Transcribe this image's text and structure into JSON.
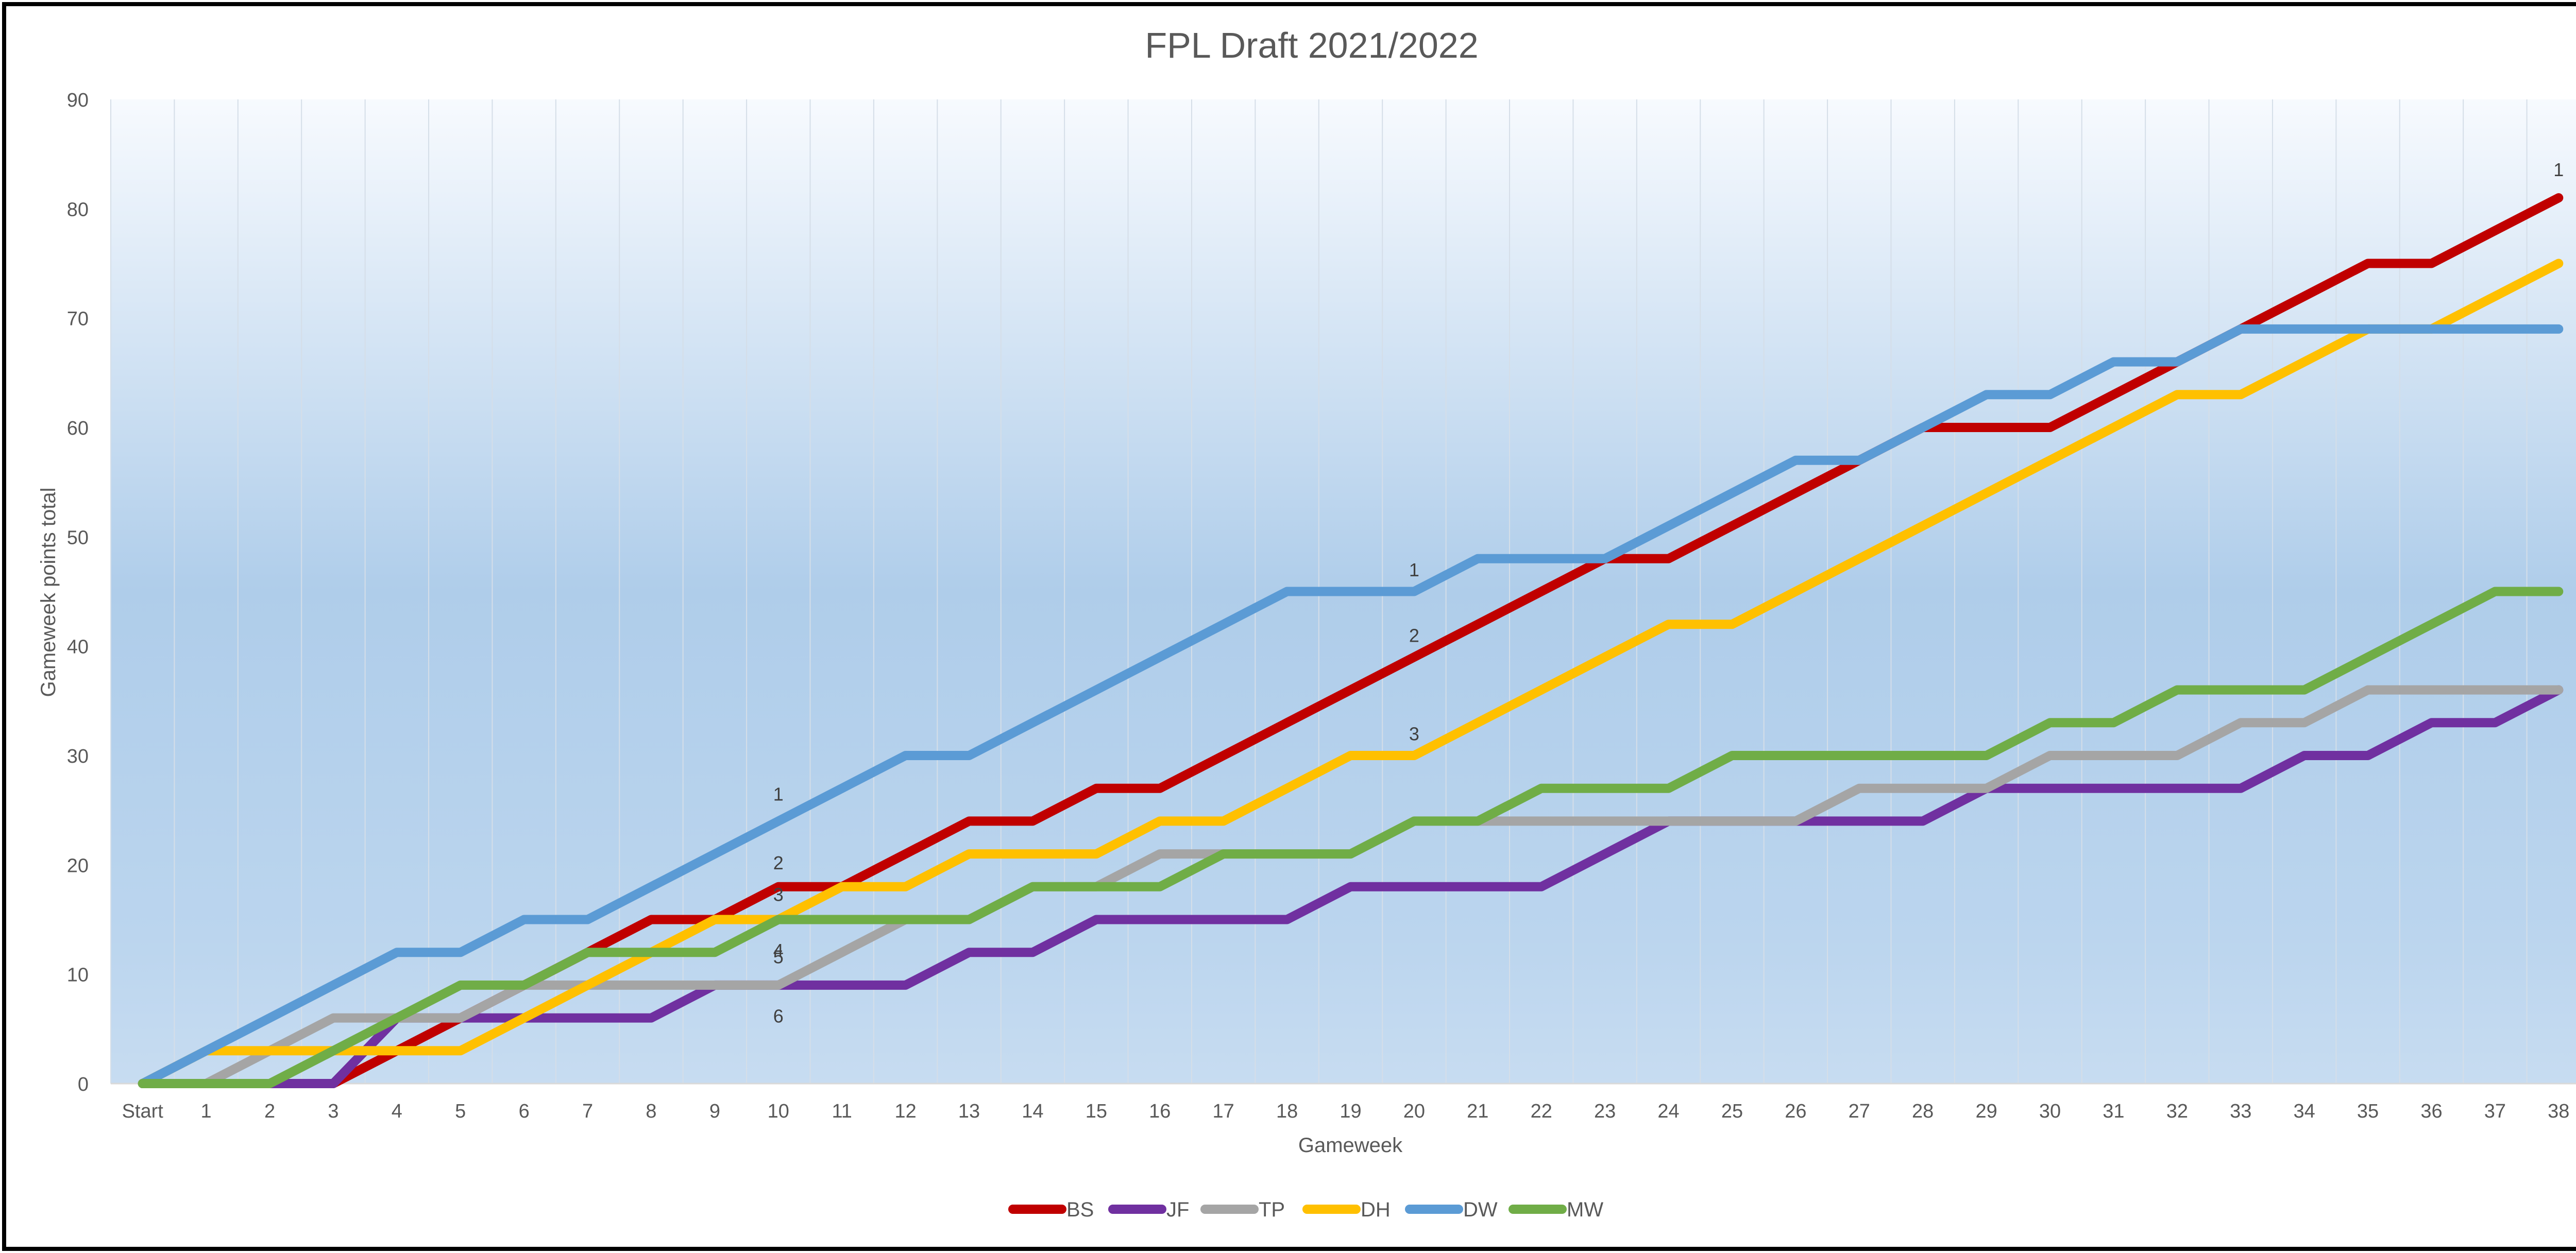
{
  "chart_data": {
    "type": "line",
    "title": "FPL Draft 2021/2022",
    "xlabel": "Gameweek",
    "ylabel": "Gameweek points total",
    "ylim": [
      0,
      90
    ],
    "y_ticks": [
      0,
      10,
      20,
      30,
      40,
      50,
      60,
      70,
      80,
      90
    ],
    "categories": [
      "Start",
      "1",
      "2",
      "3",
      "4",
      "5",
      "6",
      "7",
      "8",
      "9",
      "10",
      "11",
      "12",
      "13",
      "14",
      "15",
      "16",
      "17",
      "18",
      "19",
      "20",
      "21",
      "22",
      "23",
      "24",
      "25",
      "26",
      "27",
      "28",
      "29",
      "30",
      "31",
      "32",
      "33",
      "34",
      "35",
      "36",
      "37",
      "38"
    ],
    "grid": "vertical",
    "legend": "bottom",
    "series": [
      {
        "name": "BS",
        "color": "#C00000",
        "values": [
          0,
          0,
          0,
          0,
          3,
          6,
          9,
          12,
          15,
          15,
          18,
          18,
          21,
          24,
          24,
          27,
          27,
          30,
          33,
          36,
          39,
          42,
          45,
          48,
          48,
          51,
          54,
          57,
          60,
          60,
          60,
          63,
          66,
          69,
          72,
          75,
          75,
          78,
          81
        ]
      },
      {
        "name": "JF",
        "color": "#7030A0",
        "values": [
          0,
          0,
          0,
          0,
          6,
          6,
          6,
          6,
          6,
          9,
          9,
          9,
          9,
          12,
          12,
          15,
          15,
          15,
          15,
          18,
          18,
          18,
          18,
          21,
          24,
          24,
          24,
          24,
          24,
          27,
          27,
          27,
          27,
          27,
          30,
          30,
          33,
          33,
          36
        ]
      },
      {
        "name": "TP",
        "color": "#A5A5A5",
        "values": [
          0,
          0,
          3,
          6,
          6,
          6,
          9,
          9,
          9,
          9,
          9,
          12,
          15,
          15,
          18,
          18,
          21,
          21,
          21,
          21,
          24,
          24,
          24,
          24,
          24,
          24,
          24,
          27,
          27,
          27,
          30,
          30,
          30,
          33,
          33,
          36,
          36,
          36,
          36
        ]
      },
      {
        "name": "DH",
        "color": "#FFC000",
        "values": [
          0,
          3,
          3,
          3,
          3,
          3,
          6,
          9,
          12,
          15,
          15,
          18,
          18,
          21,
          21,
          21,
          24,
          24,
          27,
          30,
          30,
          33,
          36,
          39,
          42,
          42,
          45,
          48,
          51,
          54,
          57,
          60,
          63,
          63,
          66,
          69,
          69,
          72,
          75
        ]
      },
      {
        "name": "DW",
        "color": "#5B9BD5",
        "values": [
          0,
          3,
          6,
          9,
          12,
          12,
          15,
          15,
          18,
          21,
          24,
          27,
          30,
          30,
          33,
          36,
          39,
          42,
          45,
          45,
          45,
          48,
          48,
          48,
          51,
          54,
          57,
          57,
          60,
          63,
          63,
          66,
          66,
          69,
          69,
          69,
          69,
          69,
          69
        ]
      },
      {
        "name": "MW",
        "color": "#70AD47",
        "values": [
          0,
          0,
          0,
          3,
          6,
          9,
          9,
          12,
          12,
          12,
          15,
          15,
          15,
          15,
          18,
          18,
          18,
          21,
          21,
          21,
          24,
          24,
          27,
          27,
          27,
          30,
          30,
          30,
          30,
          30,
          33,
          33,
          36,
          36,
          36,
          39,
          42,
          45,
          45
        ]
      }
    ],
    "annotations": [
      {
        "text": "1",
        "x": "10",
        "y": 26.5
      },
      {
        "text": "2",
        "x": "10",
        "y": 20.2
      },
      {
        "text": "3",
        "x": "10",
        "y": 17.3
      },
      {
        "text": "4",
        "x": "10",
        "y": 12.2
      },
      {
        "text": "5",
        "x": "10",
        "y": 11.6
      },
      {
        "text": "6",
        "x": "10",
        "y": 6.2
      },
      {
        "text": "1",
        "x": "20",
        "y": 47.0
      },
      {
        "text": "2",
        "x": "20",
        "y": 41.0
      },
      {
        "text": "3",
        "x": "20",
        "y": 32.0
      },
      {
        "text": "1",
        "x": "38",
        "y": 83.6
      }
    ]
  }
}
